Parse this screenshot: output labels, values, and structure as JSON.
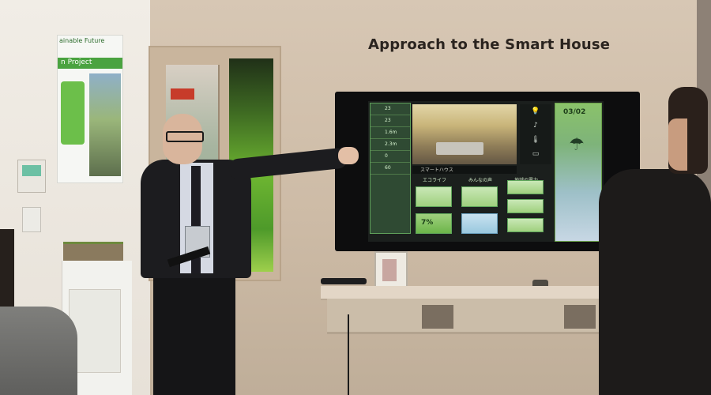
{
  "photo": {
    "sign_text": "Approach to the Smart House",
    "poster": {
      "top_text": "ainable Future",
      "band_text": "n Project"
    },
    "tv_screen": {
      "date": "03/02",
      "caption": "スマートハウス",
      "tile_headers": [
        "エコライフ",
        "みんなの声",
        "地域の電力"
      ],
      "tile_percent": "7%",
      "left_column_values": [
        "23",
        "23",
        "1.6m",
        "2.3m",
        "0",
        "60"
      ]
    },
    "colors": {
      "wall": "#d7c7b4",
      "tv_bezel": "#0d0d0e",
      "screen_accent": "#7cc46a"
    },
    "icons": [
      "umbrella-icon",
      "lightbulb-icon",
      "thermometer-icon",
      "music-note-icon"
    ]
  }
}
